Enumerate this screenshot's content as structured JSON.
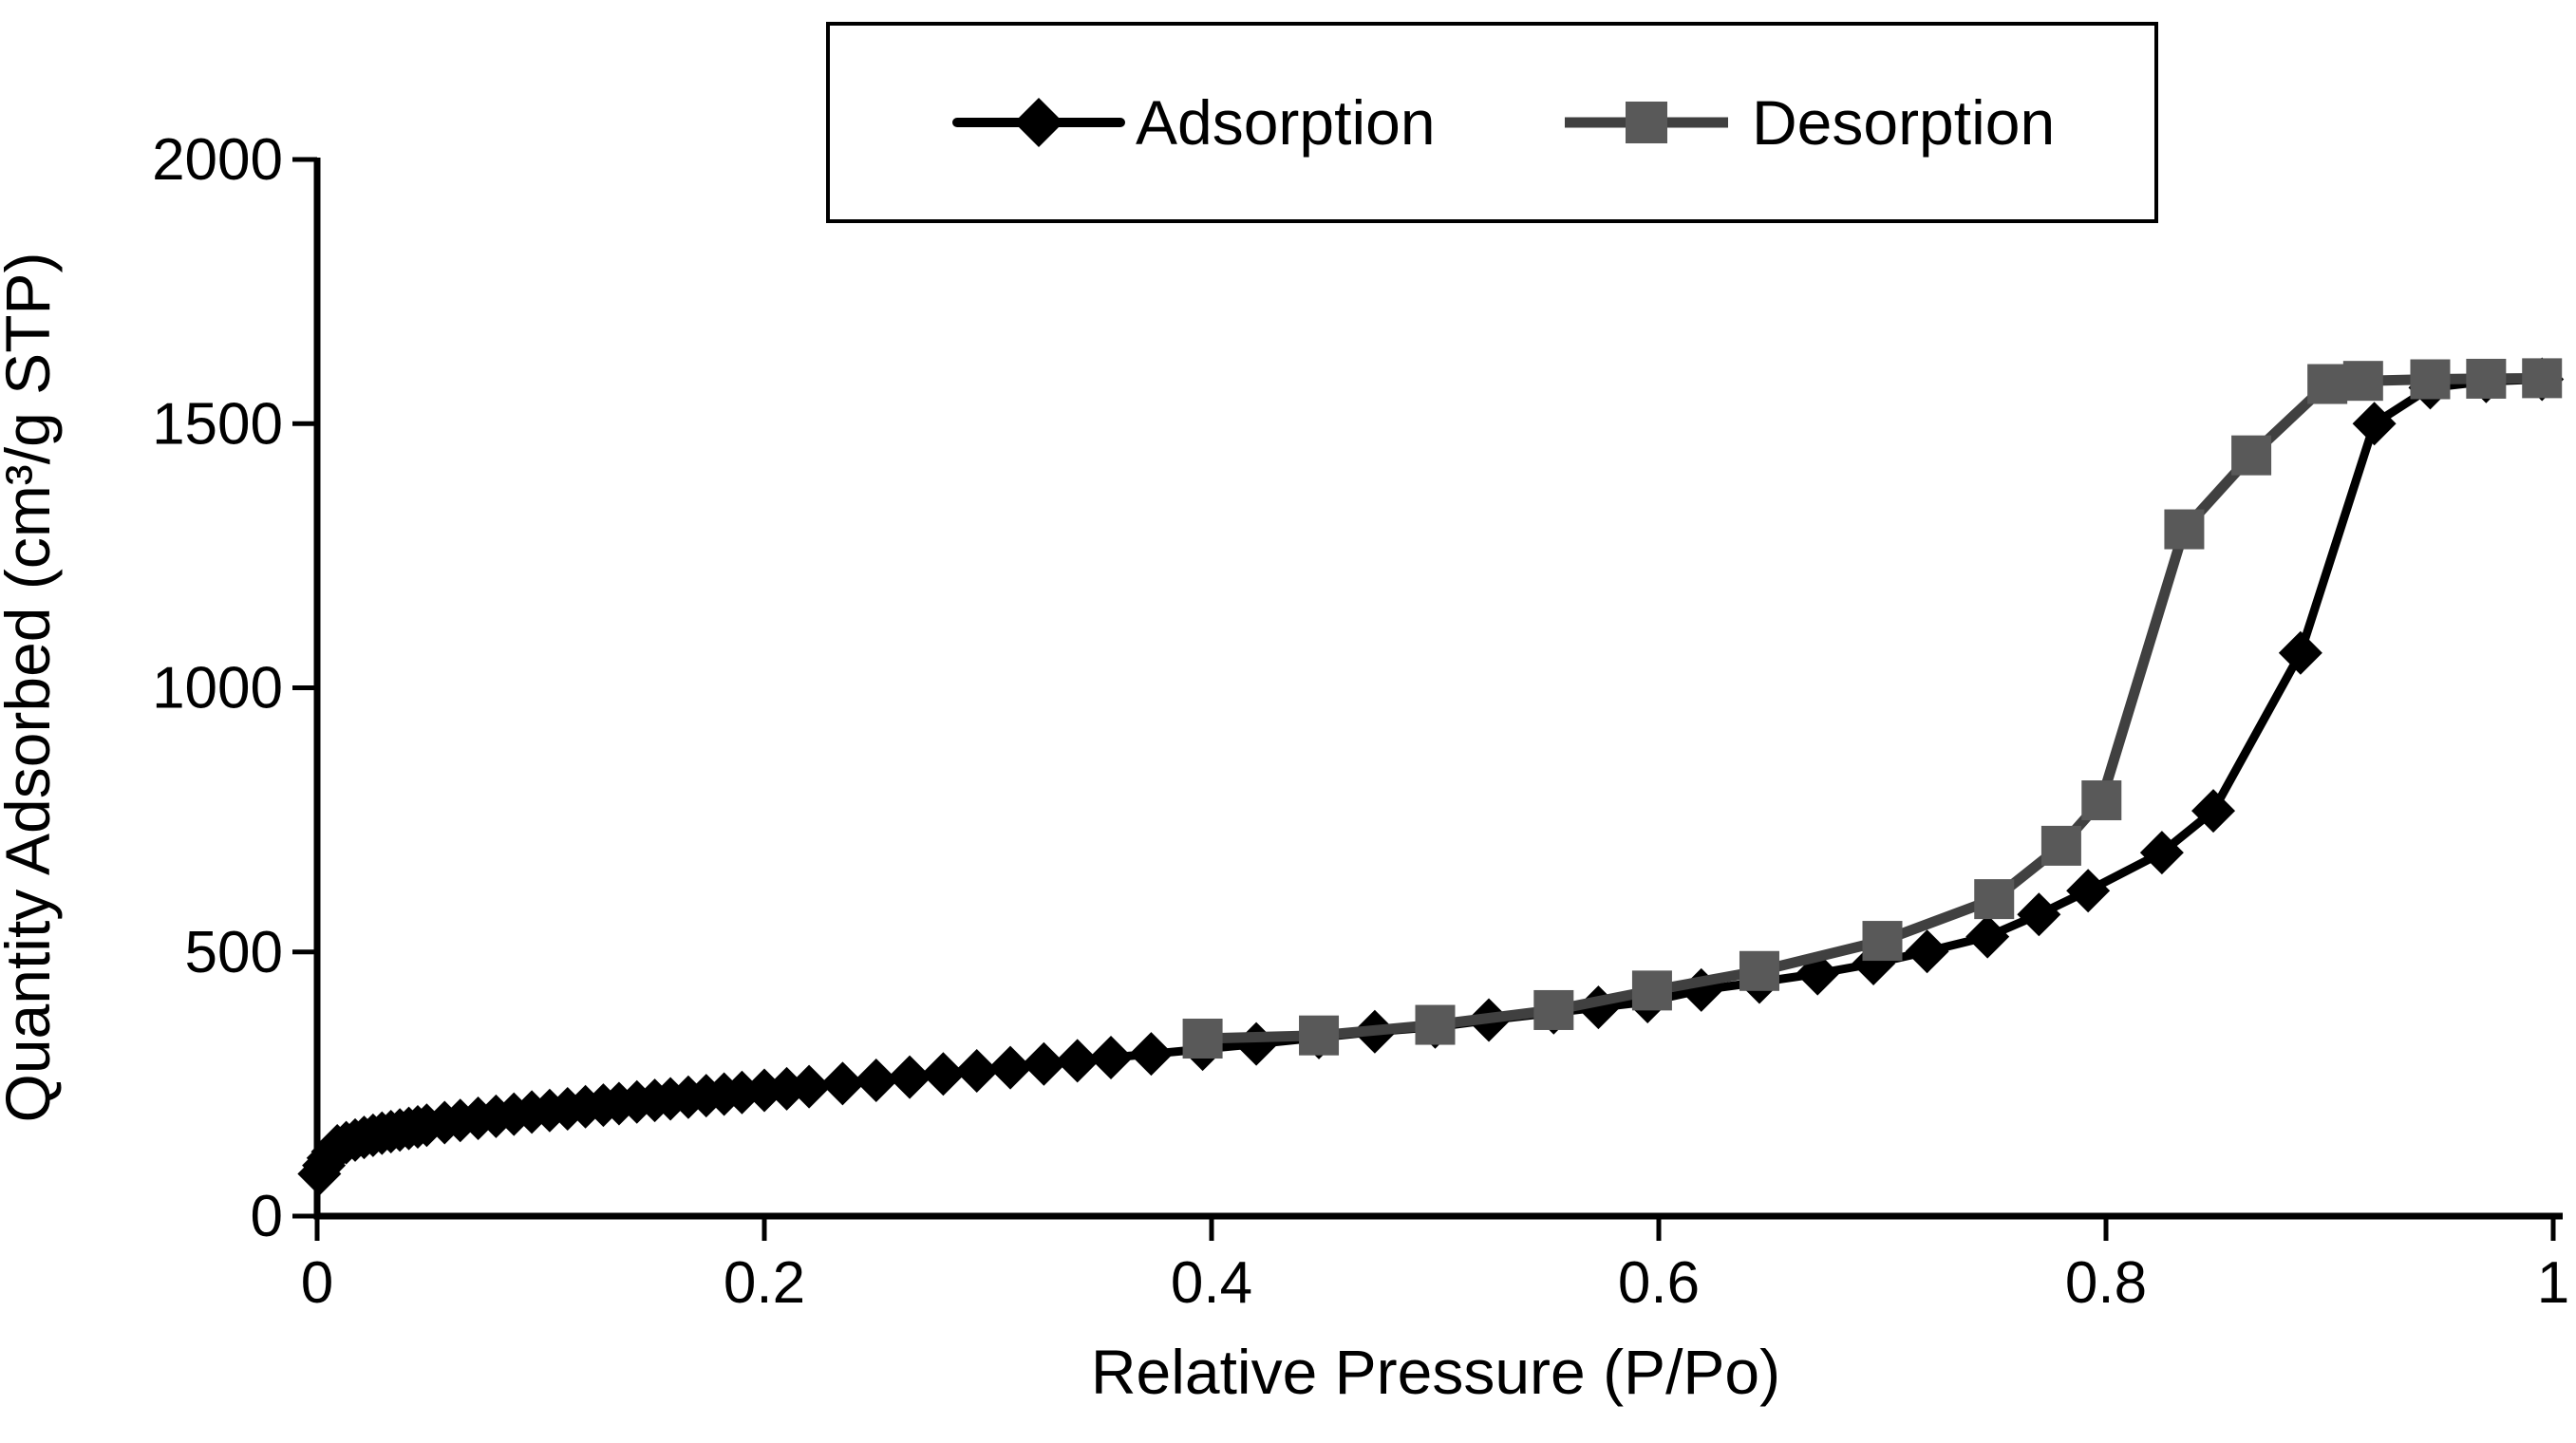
{
  "chart_data": {
    "type": "line",
    "title": "",
    "xlabel": "Relative Pressure (P/Po)",
    "ylabel": "Quantity Adsorbed (cm³/g STP)",
    "xlim": [
      0,
      1
    ],
    "ylim": [
      0,
      2000
    ],
    "grid": false,
    "legend_position": "top-center",
    "background_color": "#ffffff",
    "axis_color": "#000000",
    "x_ticks": [
      {
        "v": 0,
        "label": "0"
      },
      {
        "v": 0.2,
        "label": "0.2"
      },
      {
        "v": 0.4,
        "label": "0.4"
      },
      {
        "v": 0.6,
        "label": "0.6"
      },
      {
        "v": 0.8,
        "label": "0.8"
      },
      {
        "v": 1,
        "label": "1"
      }
    ],
    "y_ticks": [
      {
        "v": 0,
        "label": "0"
      },
      {
        "v": 500,
        "label": "500"
      },
      {
        "v": 1000,
        "label": "1000"
      },
      {
        "v": 1500,
        "label": "1500"
      },
      {
        "v": 2000,
        "label": "2000"
      }
    ],
    "series": [
      {
        "name": "Adsorption",
        "marker": "diamond",
        "marker_color": "#000000",
        "line_color": "#000000",
        "points": [
          [
            0.001,
            80
          ],
          [
            0.003,
            96
          ],
          [
            0.005,
            110
          ],
          [
            0.007,
            122
          ],
          [
            0.009,
            133
          ],
          [
            0.013,
            139
          ],
          [
            0.017,
            144
          ],
          [
            0.021,
            149
          ],
          [
            0.025,
            153
          ],
          [
            0.029,
            157
          ],
          [
            0.033,
            160
          ],
          [
            0.037,
            163
          ],
          [
            0.041,
            166
          ],
          [
            0.045,
            169
          ],
          [
            0.049,
            172
          ],
          [
            0.057,
            177
          ],
          [
            0.064,
            181
          ],
          [
            0.072,
            185
          ],
          [
            0.08,
            189
          ],
          [
            0.088,
            193
          ],
          [
            0.096,
            197
          ],
          [
            0.104,
            200
          ],
          [
            0.112,
            203
          ],
          [
            0.12,
            207
          ],
          [
            0.128,
            210
          ],
          [
            0.135,
            213
          ],
          [
            0.143,
            216
          ],
          [
            0.151,
            219
          ],
          [
            0.158,
            222
          ],
          [
            0.166,
            225
          ],
          [
            0.174,
            228
          ],
          [
            0.182,
            231
          ],
          [
            0.19,
            234
          ],
          [
            0.2,
            238
          ],
          [
            0.21,
            241
          ],
          [
            0.22,
            245
          ],
          [
            0.235,
            251
          ],
          [
            0.25,
            257
          ],
          [
            0.265,
            263
          ],
          [
            0.28,
            269
          ],
          [
            0.295,
            275
          ],
          [
            0.31,
            281
          ],
          [
            0.325,
            288
          ],
          [
            0.34,
            294
          ],
          [
            0.355,
            300
          ],
          [
            0.373,
            307
          ],
          [
            0.396,
            316
          ],
          [
            0.42,
            326
          ],
          [
            0.448,
            338
          ],
          [
            0.473,
            349
          ],
          [
            0.5,
            358
          ],
          [
            0.524,
            371
          ],
          [
            0.553,
            385
          ],
          [
            0.573,
            395
          ],
          [
            0.595,
            406
          ],
          [
            0.619,
            428
          ],
          [
            0.645,
            443
          ],
          [
            0.671,
            459
          ],
          [
            0.696,
            478
          ],
          [
            0.72,
            501
          ],
          [
            0.747,
            529
          ],
          [
            0.77,
            571
          ],
          [
            0.792,
            616
          ],
          [
            0.825,
            688
          ],
          [
            0.848,
            767
          ],
          [
            0.887,
            1066
          ],
          [
            0.92,
            1500
          ],
          [
            0.945,
            1568
          ],
          [
            0.97,
            1580
          ],
          [
            0.995,
            1584
          ]
        ]
      },
      {
        "name": "Desorption",
        "marker": "square",
        "marker_color": "#595959",
        "line_color": "#404040",
        "points": [
          [
            0.995,
            1586
          ],
          [
            0.97,
            1585
          ],
          [
            0.945,
            1584
          ],
          [
            0.915,
            1581
          ],
          [
            0.899,
            1575
          ],
          [
            0.865,
            1440
          ],
          [
            0.835,
            1300
          ],
          [
            0.798,
            787
          ],
          [
            0.78,
            701
          ],
          [
            0.75,
            600
          ],
          [
            0.7,
            521
          ],
          [
            0.645,
            464
          ],
          [
            0.597,
            427
          ],
          [
            0.553,
            390
          ],
          [
            0.5,
            362
          ],
          [
            0.448,
            342
          ],
          [
            0.396,
            336
          ]
        ]
      }
    ]
  }
}
